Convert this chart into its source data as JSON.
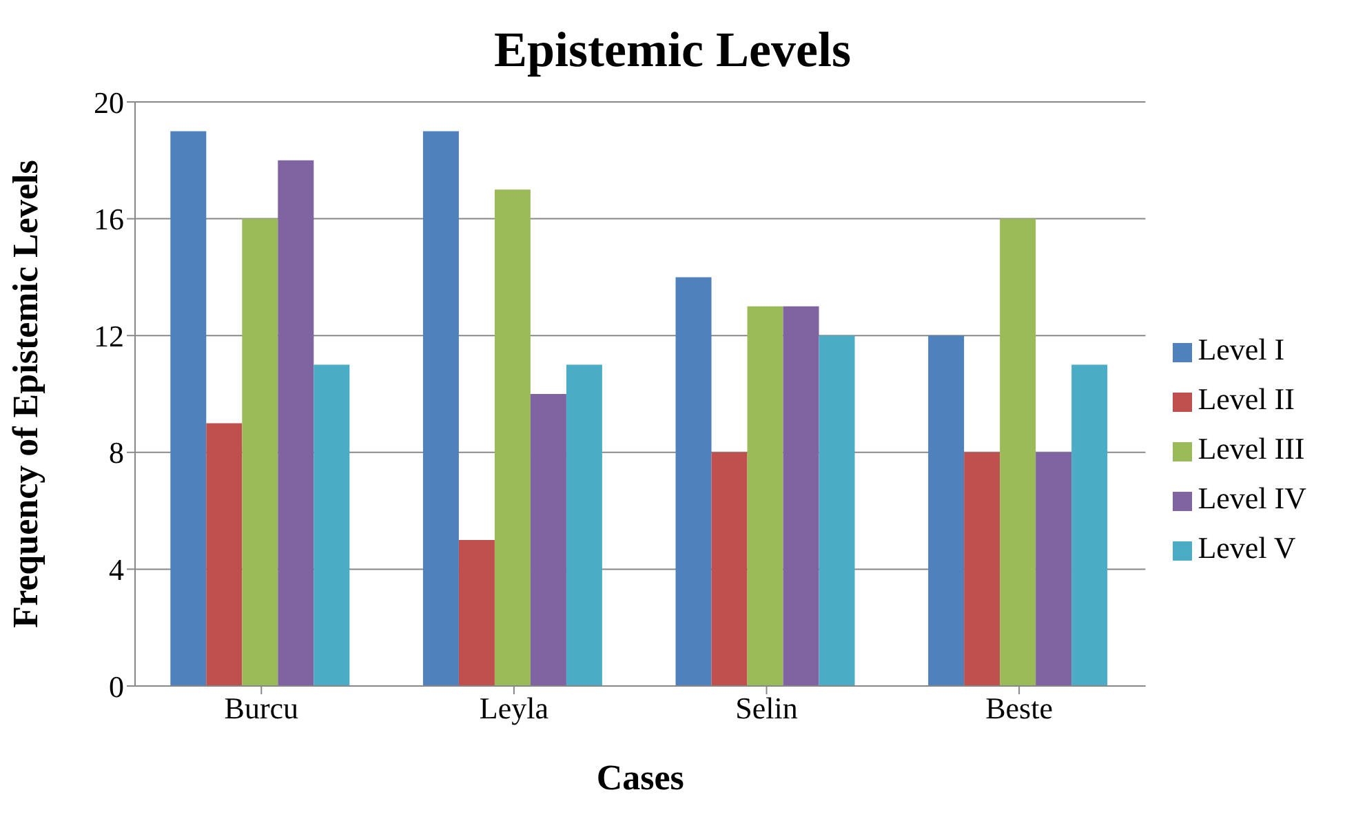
{
  "chart_data": {
    "type": "bar",
    "title": "Epistemic Levels",
    "xlabel": "Cases",
    "ylabel": "Frequency of Epistemic Levels",
    "categories": [
      "Burcu",
      "Leyla",
      "Selin",
      "Beste"
    ],
    "series": [
      {
        "name": "Level I",
        "color": "#4f81bd",
        "values": [
          19,
          19,
          14,
          12
        ]
      },
      {
        "name": "Level II",
        "color": "#c0504d",
        "values": [
          9,
          5,
          8,
          8
        ]
      },
      {
        "name": "Level III",
        "color": "#9bbb59",
        "values": [
          16,
          17,
          13,
          16
        ]
      },
      {
        "name": "Level IV",
        "color": "#8064a2",
        "values": [
          18,
          10,
          13,
          8
        ]
      },
      {
        "name": "Level V",
        "color": "#4bacc6",
        "values": [
          11,
          11,
          12,
          11
        ]
      }
    ],
    "ylim": [
      0,
      20
    ],
    "yticks": [
      0,
      4,
      8,
      12,
      16,
      20
    ],
    "grid": "y",
    "legend": "right"
  }
}
